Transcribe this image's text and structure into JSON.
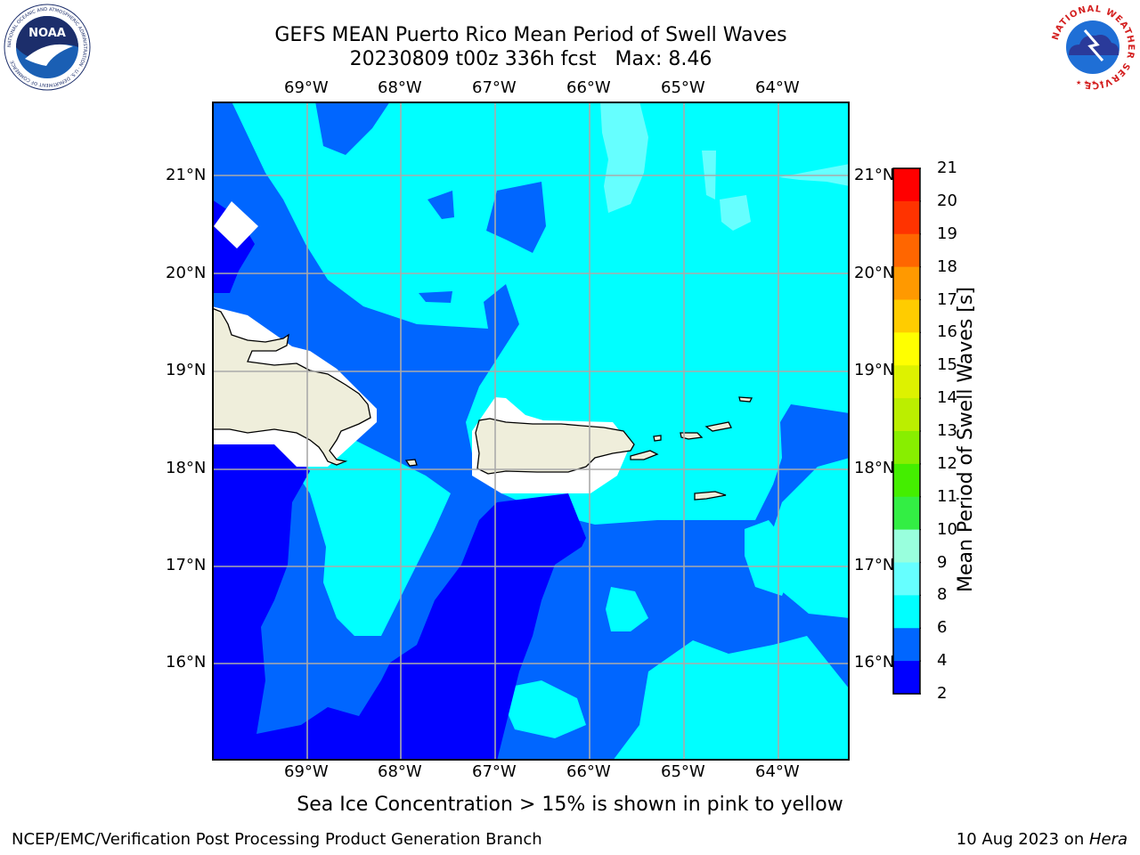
{
  "header": {
    "title_line1": "GEFS MEAN Puerto Rico Mean Period of Swell Waves",
    "title_line2": "20230809 t00z 336h fcst   Max: 8.46"
  },
  "logos": {
    "left": {
      "text": "NOAA",
      "ring_text": "NATIONAL OCEANIC AND ATMOSPHERIC ADMINISTRATION · U.S. DEPARTMENT OF COMMERCE",
      "colors": {
        "ring": "#ffffff",
        "inner": "#1a5fb4",
        "dark": "#1c2e6b"
      }
    },
    "right": {
      "ring_text": "NATIONAL WEATHER SERVICE",
      "colors": {
        "text": "#d42020",
        "inner": "#1f6fd6",
        "cloud": "#2a3a9a"
      }
    }
  },
  "map": {
    "lon_labels": [
      "69°W",
      "68°W",
      "67°W",
      "66°W",
      "65°W",
      "64°W"
    ],
    "lat_labels": [
      "21°N",
      "20°N",
      "19°N",
      "18°N",
      "17°N",
      "16°N"
    ],
    "colors": {
      "c2_4": "#0000ff",
      "c4_6": "#0066ff",
      "c6_8": "#00ffff",
      "c8_9": "#66ffff",
      "c9_10": "#99ffee",
      "land": "#efeedb",
      "no_data": "#ffffff",
      "grid": "#aaaaaa",
      "coast": "#000000"
    }
  },
  "colorbar": {
    "label": "Mean Period of Swell Waves [s]",
    "ticks": [
      "21",
      "20",
      "19",
      "18",
      "17",
      "16",
      "15",
      "14",
      "13",
      "12",
      "11",
      "10",
      "9",
      "8",
      "6",
      "4",
      "2"
    ],
    "levels": [
      {
        "range": "20-21",
        "color": "#ff0000"
      },
      {
        "range": "19-20",
        "color": "#ff3300"
      },
      {
        "range": "18-19",
        "color": "#ff6600"
      },
      {
        "range": "17-18",
        "color": "#ff9900"
      },
      {
        "range": "16-17",
        "color": "#ffcc00"
      },
      {
        "range": "15-16",
        "color": "#ffff00"
      },
      {
        "range": "14-15",
        "color": "#ddf200"
      },
      {
        "range": "13-14",
        "color": "#bbee00"
      },
      {
        "range": "12-13",
        "color": "#88ee00"
      },
      {
        "range": "11-12",
        "color": "#44ee00"
      },
      {
        "range": "10-11",
        "color": "#33ee44"
      },
      {
        "range": "9-10",
        "color": "#99ffdd"
      },
      {
        "range": "8-9",
        "color": "#66ffff"
      },
      {
        "range": "6-8",
        "color": "#00ffff"
      },
      {
        "range": "4-6",
        "color": "#0066ff"
      },
      {
        "range": "2-4",
        "color": "#0000ff"
      }
    ]
  },
  "caption": "Sea Ice Concentration > 15% is shown in pink to yellow",
  "footer": {
    "left": "NCEP/EMC/Verification Post Processing Product Generation Branch",
    "date": "10 Aug 2023 on ",
    "host": "Hera"
  }
}
